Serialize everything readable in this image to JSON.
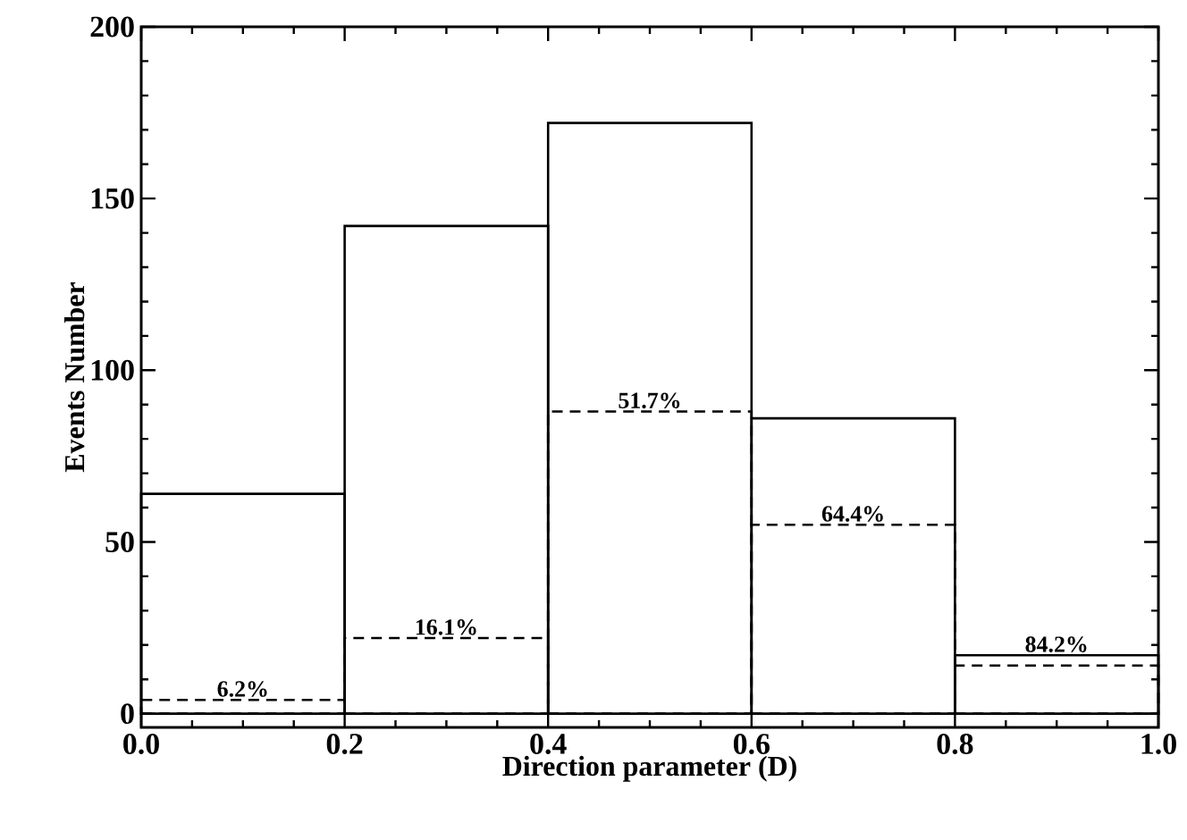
{
  "chart_data": {
    "type": "histogram",
    "xlabel": "Direction parameter (D)",
    "ylabel": "Events Number",
    "bins": [
      0,
      0.2,
      0.4,
      0.6,
      0.8,
      1.0
    ],
    "series": [
      {
        "color": "#000000",
        "line_style": "solid",
        "values": [
          64,
          142,
          172,
          86,
          17
        ]
      },
      {
        "color": "#000000",
        "line_style": "dashed",
        "values": [
          4,
          22,
          88,
          55,
          14
        ]
      }
    ],
    "annotations": [
      "6.2%",
      "16.1%",
      "51.7%",
      "64.4%",
      "84.2%"
    ],
    "xlim": [
      0,
      1
    ],
    "xticks": [
      {
        "value": 0,
        "label": "0.0"
      },
      {
        "value": 0.2,
        "label": "0.2"
      },
      {
        "value": 0.4,
        "label": "0.4"
      },
      {
        "value": 0.6,
        "label": "0.6"
      },
      {
        "value": 0.8,
        "label": "0.8"
      },
      {
        "value": 1.0,
        "label": "1.0"
      }
    ],
    "ylim": [
      -4,
      200
    ],
    "yticks": [
      0,
      50,
      100,
      150,
      200
    ],
    "grid": false
  }
}
